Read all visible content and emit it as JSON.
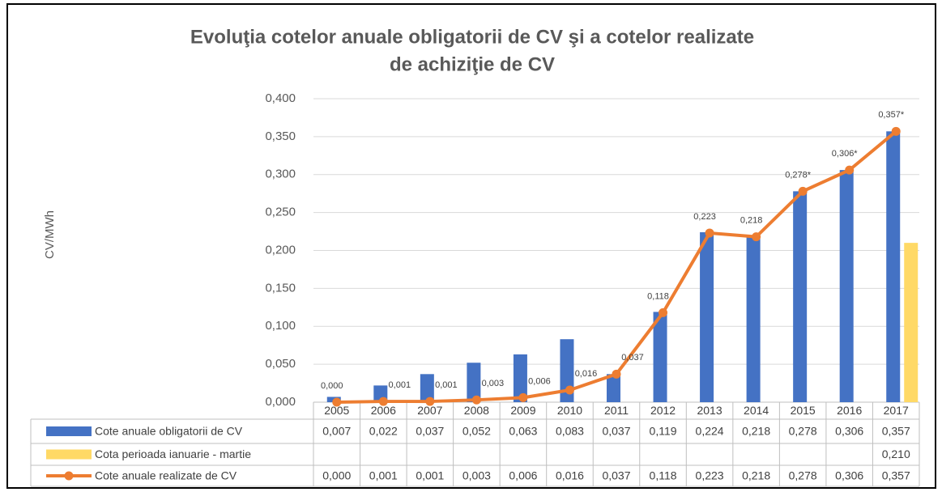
{
  "chart_data": {
    "type": "bar_line_table",
    "title": [
      "Evoluţia cotelor anuale obligatorii de CV şi a cotelor realizate",
      "de achiziţie de CV"
    ],
    "y_label": "CV/MWh",
    "categories": [
      "2005",
      "2006",
      "2007",
      "2008",
      "2009",
      "2010",
      "2011",
      "2012",
      "2013",
      "2014",
      "2015",
      "2016",
      "2017"
    ],
    "series": [
      {
        "name": "Cote anuale obligatorii de CV",
        "type": "bar",
        "color": "#4472C4",
        "values": [
          0.007,
          0.022,
          0.037,
          0.052,
          0.063,
          0.083,
          0.037,
          0.119,
          0.224,
          0.218,
          0.278,
          0.306,
          0.357
        ],
        "value_labels": [
          "0,007",
          "0,022",
          "0,037",
          "0,052",
          "0,063",
          "0,083",
          "0,037",
          "0,119",
          "0,224",
          "0,218",
          "0,278",
          "0,306",
          "0,357"
        ]
      },
      {
        "name": "Cota perioada ianuarie - martie",
        "type": "bar",
        "color": "#FFD966",
        "values": [
          null,
          null,
          null,
          null,
          null,
          null,
          null,
          null,
          null,
          null,
          null,
          null,
          0.21
        ],
        "value_labels": [
          null,
          null,
          null,
          null,
          null,
          null,
          null,
          null,
          null,
          null,
          null,
          null,
          "0,210"
        ]
      },
      {
        "name": "Cote anuale realizate de CV",
        "type": "line",
        "color": "#ED7D31",
        "values": [
          0.0,
          0.001,
          0.001,
          0.003,
          0.006,
          0.016,
          0.037,
          0.118,
          0.223,
          0.218,
          0.278,
          0.306,
          0.357
        ],
        "value_labels": [
          "0,000",
          "0,001",
          "0,001",
          "0,003",
          "0,006",
          "0,016",
          "0,037",
          "0,118",
          "0,223",
          "0,218",
          "0,278",
          "0,306",
          "0,357"
        ],
        "point_labels": [
          "0,000",
          "0,001",
          "0,001",
          "0,003",
          "0,006",
          "0,016",
          "0,037",
          "0,118",
          "0,223",
          "0,218",
          "0,278*",
          "0,306*",
          "0,357*"
        ]
      }
    ],
    "ylim": [
      0,
      0.4
    ],
    "yticks": [
      {
        "value": 0,
        "label": "0,000"
      },
      {
        "value": 0.05,
        "label": "0,050"
      },
      {
        "value": 0.1,
        "label": "0,100"
      },
      {
        "value": 0.15,
        "label": "0,150"
      },
      {
        "value": 0.2,
        "label": "0,200"
      },
      {
        "value": 0.25,
        "label": "0,250"
      },
      {
        "value": 0.3,
        "label": "0,300"
      },
      {
        "value": 0.35,
        "label": "0,350"
      },
      {
        "value": 0.4,
        "label": "0,400"
      }
    ],
    "grid": true
  }
}
